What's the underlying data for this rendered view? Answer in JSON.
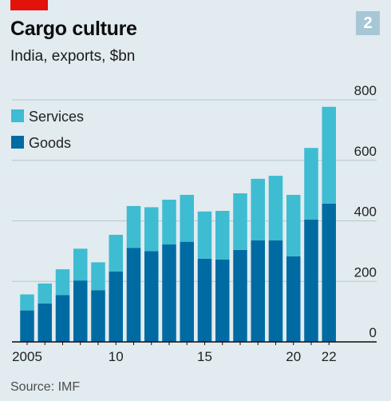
{
  "header": {
    "title": "Cargo culture",
    "subtitle": "India, exports, $bn",
    "chart_number": "2",
    "accent_color": "#e3120b"
  },
  "source": "Source: IMF",
  "chart_data": {
    "type": "bar",
    "stacked": true,
    "x": [
      2005,
      2006,
      2007,
      2008,
      2009,
      2010,
      2011,
      2012,
      2013,
      2014,
      2015,
      2016,
      2017,
      2018,
      2019,
      2020,
      2021,
      2022
    ],
    "x_tick_labels": [
      {
        "x": 2005,
        "label": "2005"
      },
      {
        "x": 2010,
        "label": "10"
      },
      {
        "x": 2015,
        "label": "15"
      },
      {
        "x": 2020,
        "label": "20"
      },
      {
        "x": 2022,
        "label": "22"
      }
    ],
    "series": [
      {
        "name": "Goods",
        "color": "#006ba2",
        "values": [
          104,
          127,
          155,
          203,
          171,
          233,
          311,
          300,
          322,
          331,
          275,
          272,
          304,
          336,
          336,
          283,
          404,
          457
        ]
      },
      {
        "name": "Services",
        "color": "#3ebcd2",
        "values": [
          53,
          66,
          85,
          105,
          92,
          121,
          138,
          145,
          148,
          155,
          156,
          161,
          187,
          203,
          213,
          203,
          237,
          320
        ]
      }
    ],
    "ylim": [
      0,
      800
    ],
    "y_ticks": [
      0,
      200,
      400,
      600,
      800
    ],
    "y_axis_side": "right",
    "grid": true,
    "legend_placement": "top-left"
  }
}
